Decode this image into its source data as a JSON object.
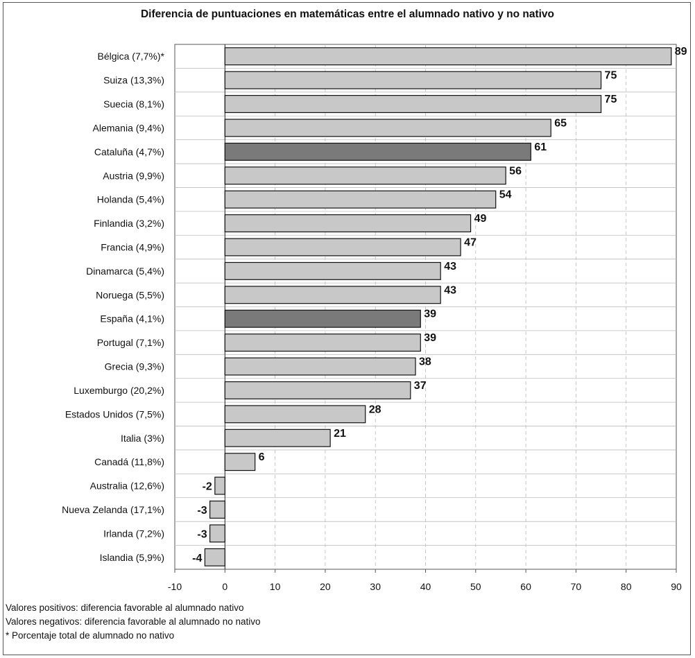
{
  "chart_data": {
    "type": "bar",
    "orientation": "horizontal",
    "title": "Diferencia de puntuaciones en matemáticas entre el alumnado nativo y no nativo",
    "xlabel": "",
    "ylabel": "",
    "xlim": [
      -10,
      90
    ],
    "xticks": [
      -10,
      0,
      10,
      20,
      30,
      40,
      50,
      60,
      70,
      80,
      90
    ],
    "grid": true,
    "categories": [
      "Bélgica (7,7%)*",
      "Suiza (13,3%)",
      "Suecia (8,1%)",
      "Alemania (9,4%)",
      "Cataluña (4,7%)",
      "Austria (9,9%)",
      "Holanda (5,4%)",
      "Finlandia (3,2%)",
      "Francia (4,9%)",
      "Dinamarca (5,4%)",
      "Noruega (5,5%)",
      "España (4,1%)",
      "Portugal (7,1%)",
      "Grecia (9,3%)",
      "Luxemburgo (20,2%)",
      "Estados Unidos (7,5%)",
      "Italia (3%)",
      "Canadá (11,8%)",
      "Australia (12,6%)",
      "Nueva Zelanda (17,1%)",
      "Irlanda (7,2%)",
      "Islandia (5,9%)"
    ],
    "values": [
      89,
      75,
      75,
      65,
      61,
      56,
      54,
      49,
      47,
      43,
      43,
      39,
      39,
      38,
      37,
      28,
      21,
      6,
      -2,
      -3,
      -3,
      -4
    ],
    "highlighted": [
      "Cataluña (4,7%)",
      "España (4,1%)"
    ],
    "colors": {
      "bar": "#c8c8c8",
      "highlight": "#7a7a7a",
      "edge": "#111111"
    }
  },
  "notes": [
    "Valores positivos: diferencia favorable al alumnado nativo",
    "Valores negativos: diferencia favorable al alumnado no nativo",
    "* Porcentaje total de alumnado no nativo"
  ]
}
